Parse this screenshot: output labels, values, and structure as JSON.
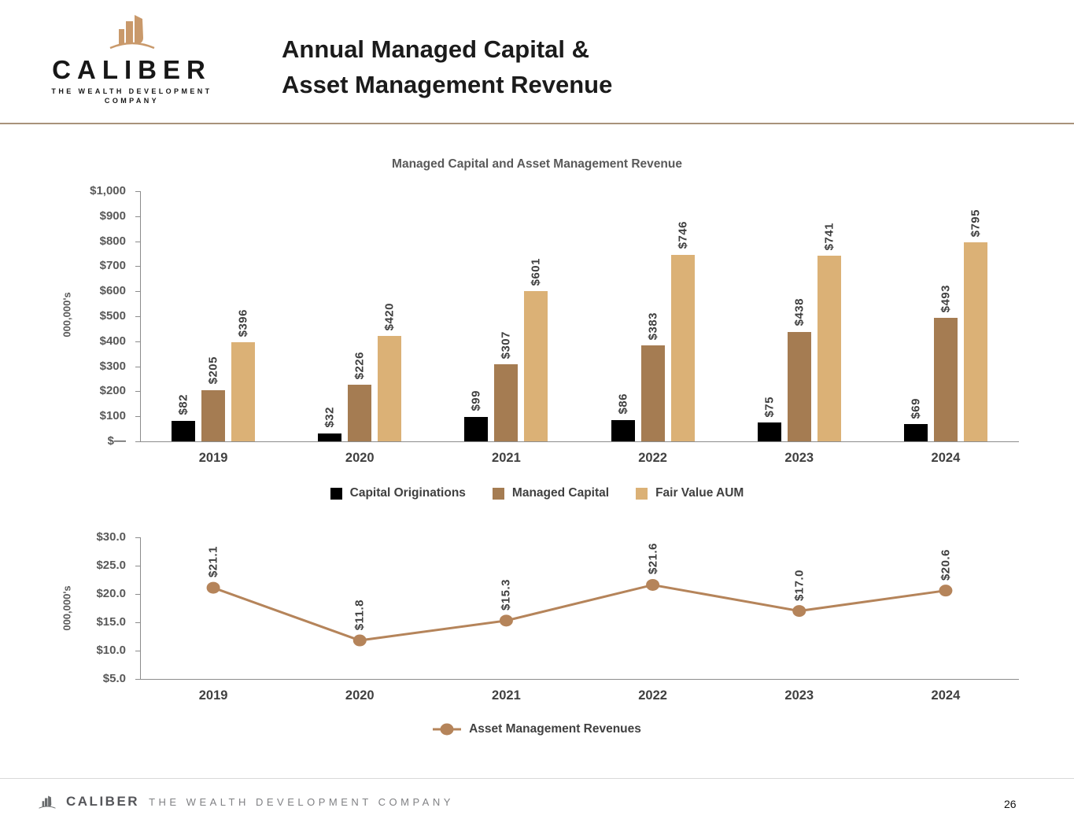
{
  "header": {
    "logo": {
      "name": "CALIBER",
      "tagline_line1": "THE WEALTH DEVELOPMENT",
      "tagline_line2": "COMPANY"
    },
    "title_line1": "Annual Managed Capital &",
    "title_line2": "Asset Management Revenue"
  },
  "colors": {
    "brand_tan": "#C9996B",
    "header_rule": "#A8927B",
    "capital_originations": "#000000",
    "managed_capital": "#A57C52",
    "fair_value_aum": "#DBB176",
    "revenue_line": "#B5845A"
  },
  "chart_data": [
    {
      "type": "bar",
      "title": "Managed Capital and Asset Management Revenue",
      "ylabel": "000,000's",
      "xlabel": "",
      "categories": [
        "2019",
        "2020",
        "2021",
        "2022",
        "2023",
        "2024"
      ],
      "series": [
        {
          "name": "Capital Originations",
          "color": "#000000",
          "values": [
            82,
            32,
            99,
            86,
            75,
            69
          ],
          "labels": [
            "$82",
            "$32",
            "$99",
            "$86",
            "$75",
            "$69"
          ]
        },
        {
          "name": "Managed Capital",
          "color": "#A57C52",
          "values": [
            205,
            226,
            307,
            383,
            438,
            493
          ],
          "labels": [
            "$205",
            "$226",
            "$307",
            "$383",
            "$438",
            "$493"
          ]
        },
        {
          "name": "Fair Value AUM",
          "color": "#DBB176",
          "values": [
            396,
            420,
            601,
            746,
            741,
            795
          ],
          "labels": [
            "$396",
            "$420",
            "$601",
            "$746",
            "$741",
            "$795"
          ]
        }
      ],
      "ylim": [
        0,
        1000
      ],
      "yticks": [
        {
          "v": 1000,
          "label": "$1,000"
        },
        {
          "v": 900,
          "label": "$900"
        },
        {
          "v": 800,
          "label": "$800"
        },
        {
          "v": 700,
          "label": "$700"
        },
        {
          "v": 600,
          "label": "$600"
        },
        {
          "v": 500,
          "label": "$500"
        },
        {
          "v": 400,
          "label": "$400"
        },
        {
          "v": 300,
          "label": "$300"
        },
        {
          "v": 200,
          "label": "$200"
        },
        {
          "v": 100,
          "label": "$100"
        },
        {
          "v": 0,
          "label": "$—"
        }
      ],
      "grid": false,
      "legend_position": "bottom"
    },
    {
      "type": "line",
      "title": "",
      "ylabel": "000,000's",
      "xlabel": "",
      "categories": [
        "2019",
        "2020",
        "2021",
        "2022",
        "2023",
        "2024"
      ],
      "series": [
        {
          "name": "Asset Management Revenues",
          "color": "#B5845A",
          "values": [
            21.1,
            11.8,
            15.3,
            21.6,
            17.0,
            20.6
          ],
          "labels": [
            "$21.1",
            "$11.8",
            "$15.3",
            "$21.6",
            "$17.0",
            "$20.6"
          ]
        }
      ],
      "ylim": [
        5,
        30
      ],
      "yticks": [
        {
          "v": 30,
          "label": "$30.0"
        },
        {
          "v": 25,
          "label": "$25.0"
        },
        {
          "v": 20,
          "label": "$20.0"
        },
        {
          "v": 15,
          "label": "$15.0"
        },
        {
          "v": 10,
          "label": "$10.0"
        },
        {
          "v": 5,
          "label": "$5.0"
        }
      ],
      "grid": false,
      "legend_position": "bottom"
    }
  ],
  "footer": {
    "brand": "CALIBER",
    "tagline": "THE  WEALTH  DEVELOPMENT   COMPANY",
    "page_number": "26"
  }
}
